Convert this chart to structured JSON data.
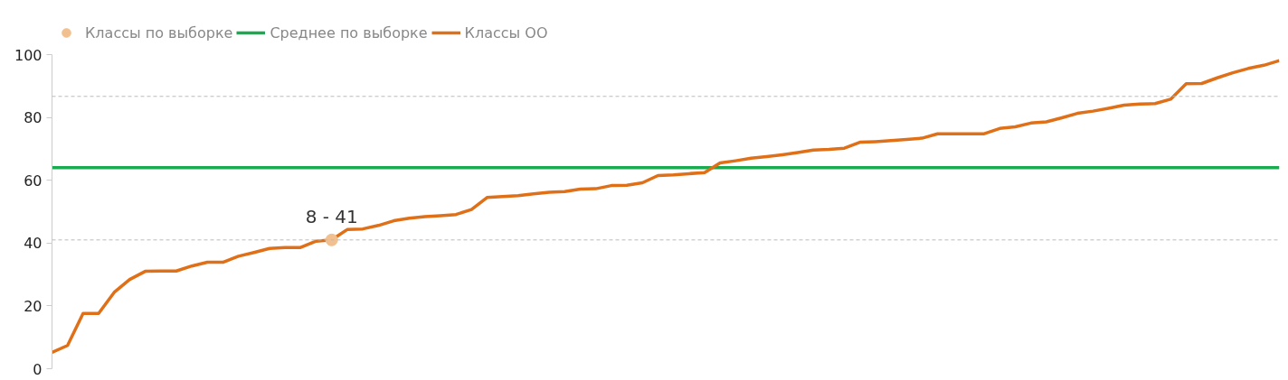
{
  "chart_data": {
    "type": "line",
    "categories": [
      null,
      null,
      null,
      null,
      null,
      null,
      null,
      null,
      null,
      null,
      null,
      null,
      null,
      null,
      null,
      null,
      null,
      null,
      null,
      null,
      null,
      null,
      null,
      null,
      null,
      null,
      null,
      null,
      null,
      null,
      null,
      null,
      null,
      null,
      null,
      null,
      null,
      null,
      null,
      null,
      null,
      null,
      null,
      null,
      null,
      null,
      null,
      null,
      null,
      null,
      null,
      null,
      null,
      null,
      null,
      null,
      null,
      null,
      null,
      null,
      null,
      null,
      null,
      null,
      null,
      null,
      null,
      null,
      null,
      null,
      null,
      null,
      null,
      null,
      null,
      null,
      null,
      null,
      null,
      null
    ],
    "series": [
      {
        "name": "Классы по выборке",
        "type": "scatter",
        "color": "#f2c08e",
        "values": [
          null,
          null,
          null,
          null,
          null,
          null,
          null,
          null,
          null,
          null,
          null,
          null,
          null,
          null,
          null,
          null,
          null,
          null,
          41,
          null,
          null,
          null,
          null,
          null,
          null,
          null,
          null,
          null,
          null,
          null,
          null,
          null,
          null,
          null,
          null,
          null,
          null,
          null,
          null,
          null,
          null,
          null,
          null,
          null,
          null,
          null,
          null,
          null,
          null,
          null,
          null,
          null,
          null,
          null,
          null,
          null,
          null,
          null,
          null,
          null,
          null,
          null,
          null,
          null,
          null,
          null,
          null,
          null,
          null,
          null,
          null,
          null,
          null,
          null,
          null,
          null,
          null,
          null,
          null,
          null
        ],
        "value_labels": [
          null,
          null,
          null,
          null,
          null,
          null,
          null,
          null,
          null,
          null,
          null,
          null,
          null,
          null,
          null,
          null,
          null,
          null,
          "8 - 41",
          null,
          null,
          null,
          null,
          null,
          null,
          null,
          null,
          null,
          null,
          null,
          null,
          null,
          null,
          null,
          null,
          null,
          null,
          null,
          null,
          null,
          null,
          null,
          null,
          null,
          null,
          null,
          null,
          null,
          null,
          null,
          null,
          null,
          null,
          null,
          null,
          null,
          null,
          null,
          null,
          null,
          null,
          null,
          null,
          null,
          null,
          null,
          null,
          null,
          null,
          null,
          null,
          null,
          null,
          null,
          null,
          null,
          null,
          null,
          null,
          null
        ]
      },
      {
        "name": "Среднее по выборке",
        "color": "#1aab50",
        "values": [
          64,
          64,
          64,
          64,
          64,
          64,
          64,
          64,
          64,
          64,
          64,
          64,
          64,
          64,
          64,
          64,
          64,
          64,
          64,
          64,
          64,
          64,
          64,
          64,
          64,
          64,
          64,
          64,
          64,
          64,
          64,
          64,
          64,
          64,
          64,
          64,
          64,
          64,
          64,
          64,
          64,
          64,
          64,
          64,
          64,
          64,
          64,
          64,
          64,
          64,
          64,
          64,
          64,
          64,
          64,
          64,
          64,
          64,
          64,
          64,
          64,
          64,
          64,
          64,
          64,
          64,
          64,
          64,
          64,
          64,
          64,
          64,
          64,
          64,
          64,
          64,
          64,
          64,
          64,
          64
        ]
      },
      {
        "name": "Классы ОО",
        "color": "#e07018",
        "values": [
          5.2,
          7.4,
          17.6,
          17.6,
          24.3,
          28.4,
          31.0,
          31.1,
          31.1,
          32.7,
          33.9,
          33.9,
          35.8,
          37.0,
          38.3,
          38.6,
          38.6,
          40.6,
          41,
          44.3,
          44.5,
          45.6,
          47.1,
          47.9,
          48.4,
          48.7,
          49.1,
          50.7,
          54.5,
          54.8,
          55.1,
          55.7,
          56.2,
          56.4,
          57.2,
          57.3,
          58.3,
          58.4,
          59.2,
          61.5,
          61.7,
          62.1,
          62.4,
          65.5,
          66.2,
          67.0,
          67.5,
          68.1,
          68.8,
          69.6,
          69.8,
          70.2,
          72.1,
          72.3,
          72.6,
          73.0,
          73.4,
          74.8,
          74.8,
          74.8,
          74.8,
          76.5,
          77.0,
          78.2,
          78.6,
          79.9,
          81.3,
          82.0,
          82.9,
          83.9,
          84.3,
          84.4,
          85.8,
          90.7,
          90.8,
          92.6,
          94.2,
          95.6,
          96.6,
          98.1
        ]
      }
    ],
    "ylim": [
      0,
      100
    ],
    "yticks": [
      0,
      20,
      40,
      60,
      80,
      100
    ],
    "ref_lines": [
      {
        "axis": "y",
        "value": 86.7,
        "color": "#bbbbbb",
        "line_style": "dashed"
      },
      {
        "axis": "y",
        "value": 41,
        "color": "#bbbbbb",
        "line_style": "dashed"
      }
    ],
    "grid": false,
    "legend": "top left",
    "tick_labels": "y"
  }
}
